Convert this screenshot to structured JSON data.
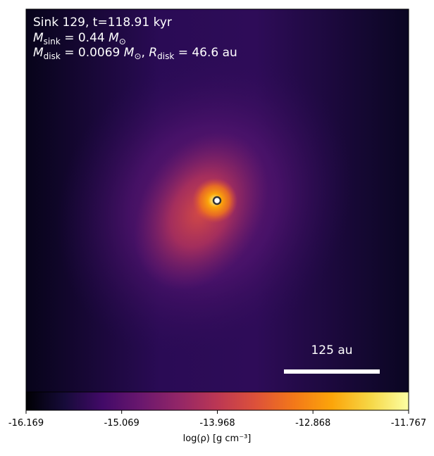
{
  "chart_data": {
    "type": "image",
    "annotation": {
      "line1": "Sink 129, t=118.91 kyr",
      "sink_mass": {
        "symbol": "M",
        "subscript": "sink",
        "value": " = 0.44 ",
        "unit": "M",
        "unit_subscript": "⊙"
      },
      "disk": {
        "symbol": "M",
        "subscript": "disk",
        "value": " = 0.0069 ",
        "unit": "M",
        "unit_subscript": "⊙",
        "sep": ", ",
        "r_symbol": "R",
        "r_subscript": "disk",
        "r_value": " = 46.6 au"
      }
    },
    "scale_bar": "125 au",
    "colorbar": {
      "label": "log(ρ) [g cm⁻³]",
      "lim": [
        -16.169,
        -11.767
      ],
      "ticks": [
        -16.169,
        -15.069,
        -13.968,
        -12.868,
        -11.767
      ]
    }
  }
}
